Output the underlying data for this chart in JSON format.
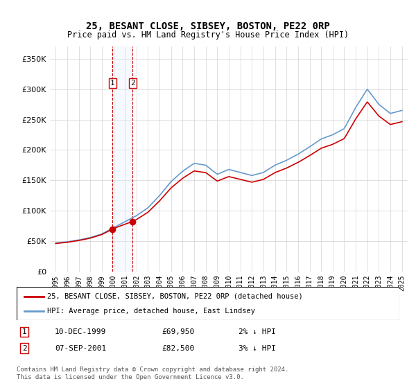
{
  "title": "25, BESANT CLOSE, SIBSEY, BOSTON, PE22 0RP",
  "subtitle": "Price paid vs. HM Land Registry's House Price Index (HPI)",
  "legend_label_red": "25, BESANT CLOSE, SIBSEY, BOSTON, PE22 0RP (detached house)",
  "legend_label_blue": "HPI: Average price, detached house, East Lindsey",
  "transaction1_label": "1",
  "transaction1_date": "10-DEC-1999",
  "transaction1_price": "£69,950",
  "transaction1_hpi": "2% ↓ HPI",
  "transaction2_label": "2",
  "transaction2_date": "07-SEP-2001",
  "transaction2_price": "£82,500",
  "transaction2_hpi": "3% ↓ HPI",
  "footnote": "Contains HM Land Registry data © Crown copyright and database right 2024.\nThis data is licensed under the Open Government Licence v3.0.",
  "ylim": [
    0,
    370000
  ],
  "yticks": [
    0,
    50000,
    100000,
    150000,
    200000,
    250000,
    300000,
    350000
  ],
  "ytick_labels": [
    "£0",
    "£50K",
    "£100K",
    "£150K",
    "£200K",
    "£250K",
    "£300K",
    "£350K"
  ],
  "years": [
    1995,
    1996,
    1997,
    1998,
    1999,
    2000,
    2001,
    2002,
    2003,
    2004,
    2005,
    2006,
    2007,
    2008,
    2009,
    2010,
    2011,
    2012,
    2013,
    2014,
    2015,
    2016,
    2017,
    2018,
    2019,
    2020,
    2021,
    2022,
    2023,
    2024,
    2025
  ],
  "hpi_values": [
    47000,
    49000,
    52000,
    56000,
    62000,
    72000,
    82000,
    92000,
    105000,
    125000,
    148000,
    165000,
    178000,
    175000,
    160000,
    168000,
    163000,
    158000,
    163000,
    175000,
    183000,
    193000,
    205000,
    218000,
    225000,
    235000,
    270000,
    300000,
    275000,
    260000,
    265000
  ],
  "sale1_year": 1999.92,
  "sale1_price": 69950,
  "sale2_year": 2001.67,
  "sale2_price": 82500,
  "transaction1_x": 1999.92,
  "transaction2_x": 2001.67,
  "color_red": "#cc0000",
  "color_blue": "#6699cc",
  "color_shaded": "#ddeeff",
  "background_color": "#ffffff"
}
